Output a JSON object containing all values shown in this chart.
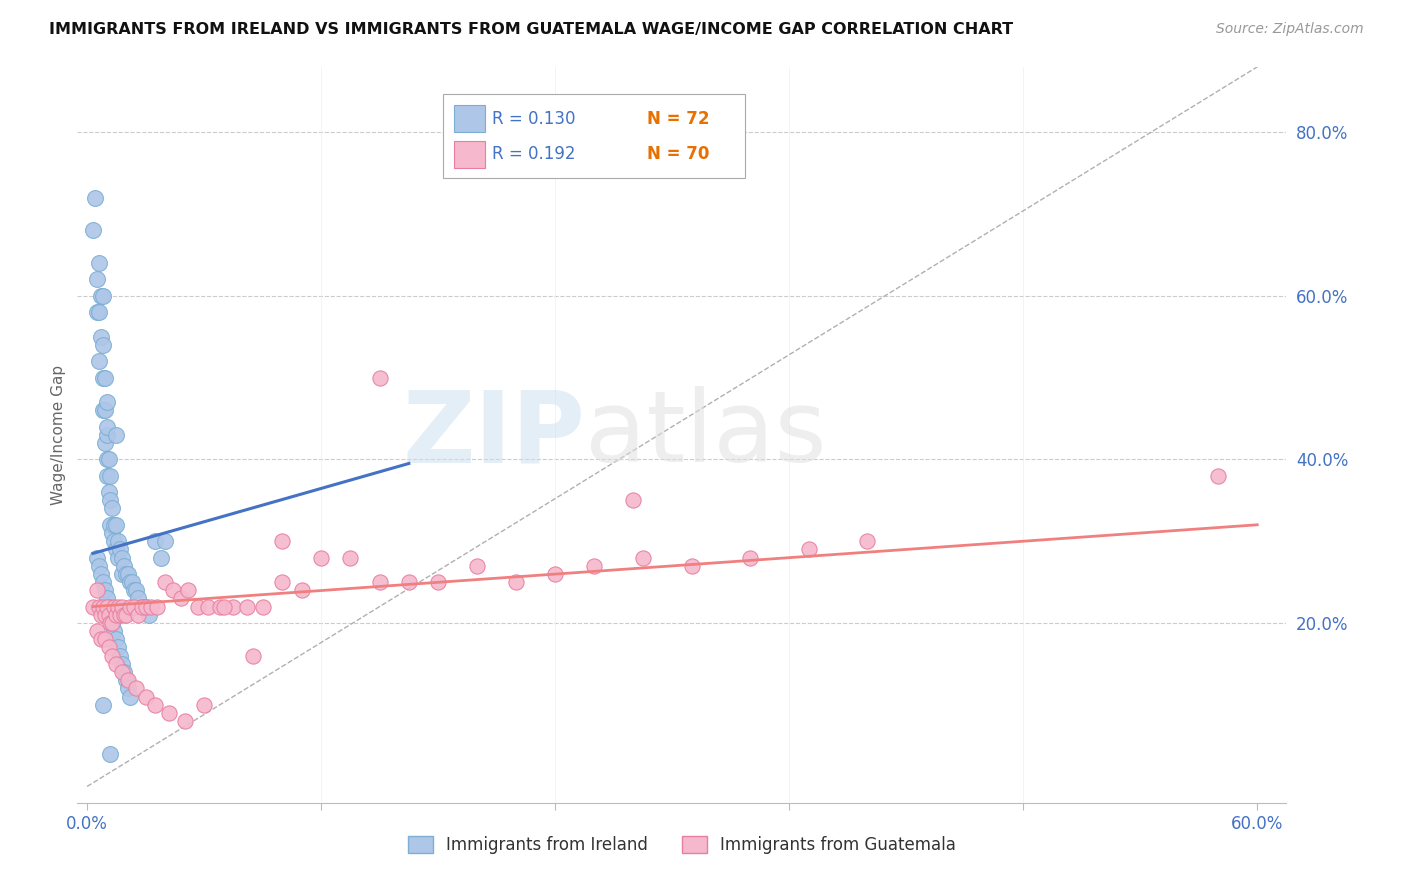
{
  "title": "IMMIGRANTS FROM IRELAND VS IMMIGRANTS FROM GUATEMALA WAGE/INCOME GAP CORRELATION CHART",
  "source": "Source: ZipAtlas.com",
  "ylabel": "Wage/Income Gap",
  "right_yticks": [
    "80.0%",
    "60.0%",
    "40.0%",
    "20.0%"
  ],
  "right_ytick_vals": [
    0.8,
    0.6,
    0.4,
    0.2
  ],
  "xlim": [
    0.0,
    0.6
  ],
  "ylim": [
    0.0,
    0.88
  ],
  "ireland_color": "#aec6e8",
  "ireland_edge": "#7bafd4",
  "guatemala_color": "#f5b8cc",
  "guatemala_edge": "#e87fa0",
  "ireland_R": 0.13,
  "ireland_N": 72,
  "guatemala_R": 0.192,
  "guatemala_N": 70,
  "ireland_line_color": "#4472c4",
  "guatemala_line_color": "#f08080",
  "diagonal_color": "#b0b0b0",
  "legend_R_color": "#4472c4",
  "legend_N_color": "#e87000",
  "ireland_x": [
    0.003,
    0.004,
    0.005,
    0.005,
    0.006,
    0.006,
    0.006,
    0.007,
    0.007,
    0.008,
    0.008,
    0.008,
    0.008,
    0.009,
    0.009,
    0.009,
    0.01,
    0.01,
    0.01,
    0.01,
    0.011,
    0.011,
    0.012,
    0.012,
    0.012,
    0.013,
    0.013,
    0.014,
    0.014,
    0.015,
    0.015,
    0.016,
    0.016,
    0.017,
    0.018,
    0.018,
    0.019,
    0.02,
    0.021,
    0.022,
    0.023,
    0.024,
    0.025,
    0.026,
    0.028,
    0.03,
    0.032,
    0.035,
    0.038,
    0.04,
    0.005,
    0.006,
    0.007,
    0.008,
    0.009,
    0.01,
    0.011,
    0.012,
    0.013,
    0.014,
    0.015,
    0.016,
    0.017,
    0.018,
    0.019,
    0.02,
    0.021,
    0.022,
    0.01,
    0.015,
    0.008,
    0.012
  ],
  "ireland_y": [
    0.68,
    0.72,
    0.62,
    0.58,
    0.64,
    0.58,
    0.52,
    0.6,
    0.55,
    0.6,
    0.54,
    0.5,
    0.46,
    0.5,
    0.46,
    0.42,
    0.47,
    0.43,
    0.4,
    0.38,
    0.4,
    0.36,
    0.38,
    0.35,
    0.32,
    0.34,
    0.31,
    0.32,
    0.3,
    0.32,
    0.29,
    0.3,
    0.28,
    0.29,
    0.28,
    0.26,
    0.27,
    0.26,
    0.26,
    0.25,
    0.25,
    0.24,
    0.24,
    0.23,
    0.22,
    0.22,
    0.21,
    0.3,
    0.28,
    0.3,
    0.28,
    0.27,
    0.26,
    0.25,
    0.24,
    0.23,
    0.22,
    0.21,
    0.2,
    0.19,
    0.18,
    0.17,
    0.16,
    0.15,
    0.14,
    0.13,
    0.12,
    0.11,
    0.44,
    0.43,
    0.1,
    0.04
  ],
  "guatemala_x": [
    0.003,
    0.005,
    0.006,
    0.007,
    0.008,
    0.009,
    0.01,
    0.011,
    0.012,
    0.013,
    0.014,
    0.015,
    0.016,
    0.017,
    0.018,
    0.019,
    0.02,
    0.022,
    0.024,
    0.026,
    0.028,
    0.03,
    0.033,
    0.036,
    0.04,
    0.044,
    0.048,
    0.052,
    0.057,
    0.062,
    0.068,
    0.075,
    0.082,
    0.09,
    0.1,
    0.11,
    0.12,
    0.135,
    0.15,
    0.165,
    0.18,
    0.2,
    0.22,
    0.24,
    0.26,
    0.285,
    0.31,
    0.34,
    0.37,
    0.4,
    0.005,
    0.007,
    0.009,
    0.011,
    0.013,
    0.015,
    0.018,
    0.021,
    0.025,
    0.03,
    0.035,
    0.042,
    0.05,
    0.06,
    0.07,
    0.085,
    0.1,
    0.28,
    0.58,
    0.15
  ],
  "guatemala_y": [
    0.22,
    0.24,
    0.22,
    0.21,
    0.22,
    0.21,
    0.22,
    0.21,
    0.2,
    0.2,
    0.22,
    0.21,
    0.22,
    0.21,
    0.22,
    0.21,
    0.21,
    0.22,
    0.22,
    0.21,
    0.22,
    0.22,
    0.22,
    0.22,
    0.25,
    0.24,
    0.23,
    0.24,
    0.22,
    0.22,
    0.22,
    0.22,
    0.22,
    0.22,
    0.25,
    0.24,
    0.28,
    0.28,
    0.25,
    0.25,
    0.25,
    0.27,
    0.25,
    0.26,
    0.27,
    0.28,
    0.27,
    0.28,
    0.29,
    0.3,
    0.19,
    0.18,
    0.18,
    0.17,
    0.16,
    0.15,
    0.14,
    0.13,
    0.12,
    0.11,
    0.1,
    0.09,
    0.08,
    0.1,
    0.22,
    0.16,
    0.3,
    0.35,
    0.38,
    0.5
  ],
  "ireland_line_x": [
    0.003,
    0.165
  ],
  "ireland_line_y": [
    0.285,
    0.395
  ],
  "guatemala_line_x": [
    0.003,
    0.6
  ],
  "guatemala_line_y": [
    0.22,
    0.32
  ]
}
